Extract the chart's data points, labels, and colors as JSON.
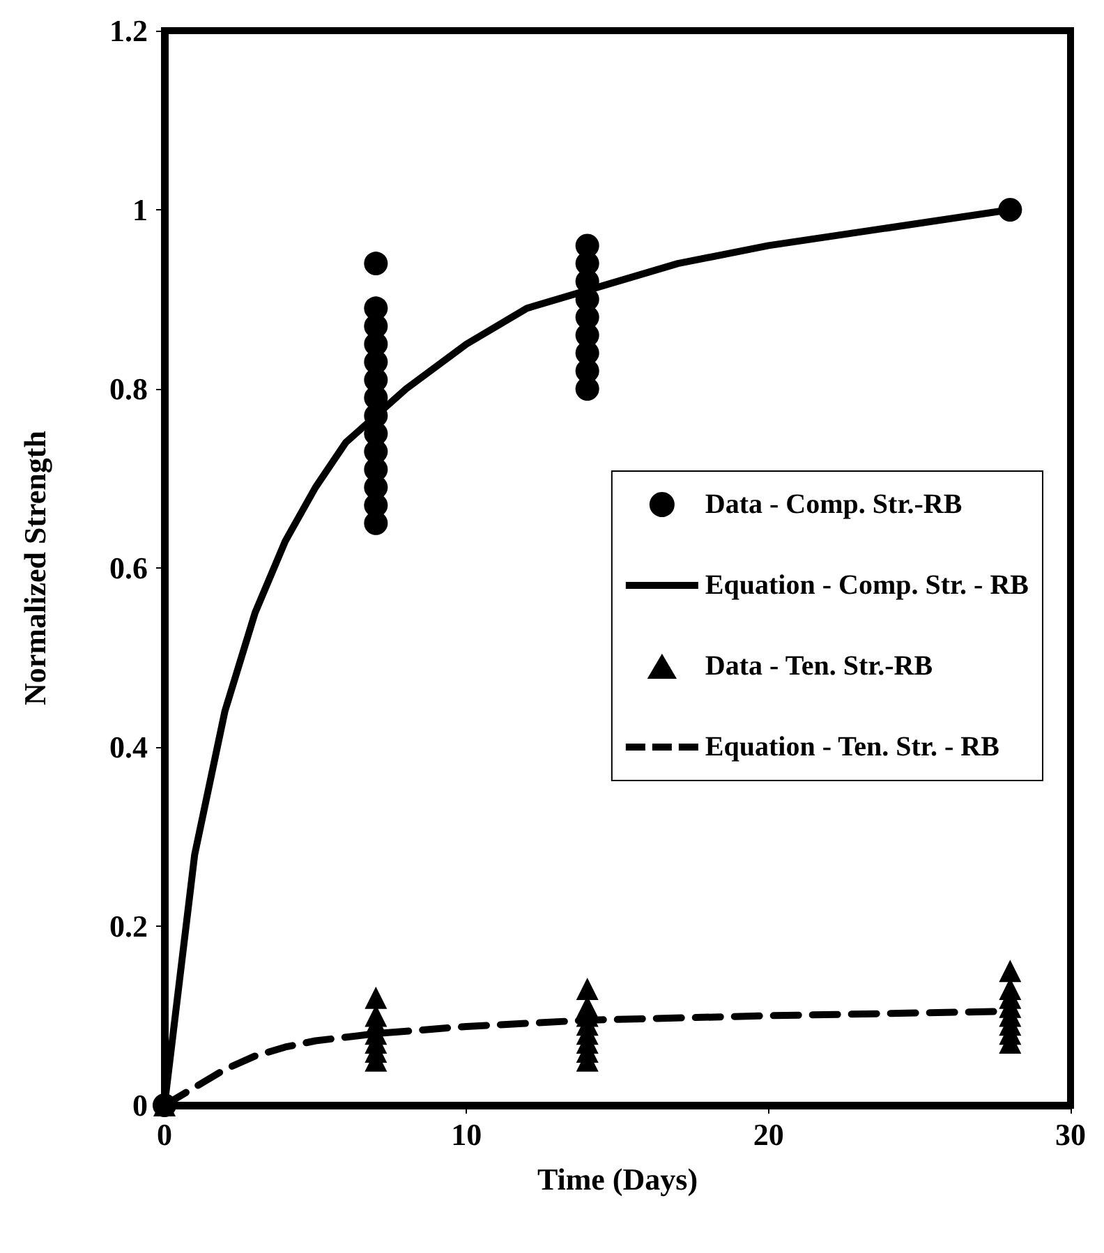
{
  "chart_data": {
    "type": "scatter",
    "xlabel": "Time (Days)",
    "ylabel": "Normalized Strength",
    "xlim": [
      0,
      30
    ],
    "xticks": [
      0,
      10,
      20,
      30
    ],
    "ylim": [
      0,
      1.2
    ],
    "yticks": [
      0,
      0.2,
      0.4,
      0.6,
      0.8,
      1,
      1.2
    ],
    "grid": false,
    "legend": "right",
    "series": [
      {
        "name": "Data - Comp. Str.-RB",
        "marker": "circle",
        "color": "#000000",
        "x": [
          0,
          7,
          7,
          7,
          7,
          7,
          7,
          7,
          7,
          7,
          7,
          7,
          7,
          7,
          7,
          14,
          14,
          14,
          14,
          14,
          14,
          14,
          14,
          14,
          28
        ],
        "values": [
          0,
          0.94,
          0.89,
          0.87,
          0.85,
          0.83,
          0.81,
          0.79,
          0.77,
          0.75,
          0.73,
          0.71,
          0.69,
          0.67,
          0.65,
          0.96,
          0.94,
          0.92,
          0.9,
          0.88,
          0.86,
          0.84,
          0.82,
          0.8,
          1
        ]
      },
      {
        "name": "Equation - Comp. Str. - RB",
        "type": "line",
        "marker": "none",
        "line_style": "solid",
        "color": "#000000",
        "x": [
          0,
          1,
          2,
          3,
          4,
          5,
          6,
          7,
          8,
          10,
          12,
          14,
          17,
          20,
          24,
          28
        ],
        "values": [
          0,
          0.28,
          0.44,
          0.55,
          0.63,
          0.69,
          0.74,
          0.77,
          0.8,
          0.85,
          0.89,
          0.91,
          0.94,
          0.96,
          0.98,
          1
        ]
      },
      {
        "name": "Data - Ten. Str.-RB",
        "marker": "triangle",
        "color": "#000000",
        "x": [
          0,
          7,
          7,
          7,
          7,
          7,
          7,
          7,
          14,
          14,
          14,
          14,
          14,
          14,
          14,
          14,
          28,
          28,
          28,
          28,
          28,
          28,
          28,
          28
        ],
        "values": [
          0,
          0.12,
          0.1,
          0.09,
          0.08,
          0.07,
          0.06,
          0.05,
          0.13,
          0.11,
          0.1,
          0.09,
          0.08,
          0.07,
          0.06,
          0.05,
          0.15,
          0.13,
          0.12,
          0.11,
          0.1,
          0.09,
          0.08,
          0.07
        ]
      },
      {
        "name": "Equation - Ten. Str. - RB",
        "type": "line",
        "marker": "none",
        "line_style": "dashed",
        "color": "#000000",
        "x": [
          0,
          1,
          2,
          3,
          4,
          5,
          7,
          10,
          14,
          20,
          28
        ],
        "values": [
          0,
          0.02,
          0.04,
          0.055,
          0.065,
          0.072,
          0.08,
          0.088,
          0.095,
          0.1,
          0.105
        ]
      }
    ]
  }
}
